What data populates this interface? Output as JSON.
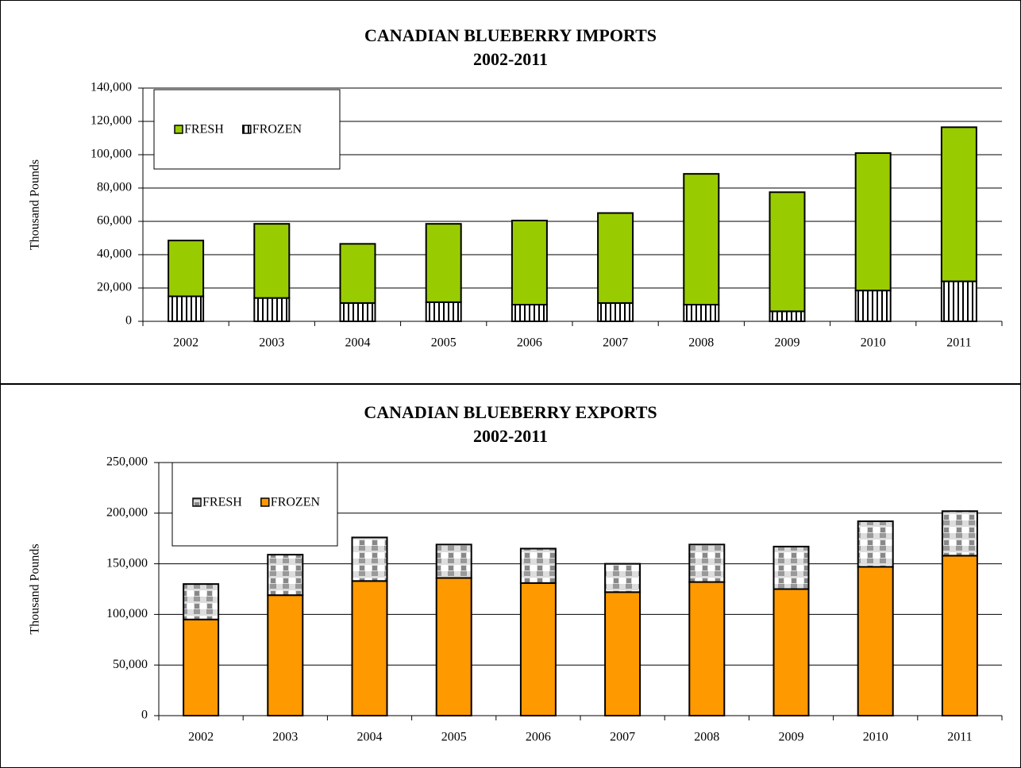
{
  "chart_data": [
    {
      "type": "stacked-bar",
      "title": "CANADIAN BLUEBERRY IMPORTS",
      "subtitle": "2002-2011",
      "y_label": "Thousand Pounds",
      "categories": [
        "2002",
        "2003",
        "2004",
        "2005",
        "2006",
        "2007",
        "2008",
        "2009",
        "2010",
        "2011"
      ],
      "series": [
        {
          "name": "FRESH",
          "color": "#99cc00",
          "pattern": "solid",
          "values": [
            33500,
            44500,
            35500,
            47000,
            50500,
            54000,
            78500,
            71500,
            82500,
            92500
          ]
        },
        {
          "name": "FROZEN",
          "color": "#ffffff",
          "pattern": "vertical-stripes",
          "values": [
            15000,
            14000,
            11000,
            11500,
            10000,
            11000,
            10000,
            6000,
            18500,
            24000
          ]
        }
      ],
      "ylim": [
        0,
        140000
      ],
      "yticks": [
        0,
        {
          "value": 20000,
          "label": "20,000"
        },
        {
          "value": 40000,
          "label": "40,000"
        },
        {
          "value": 60000,
          "label": "60,000"
        },
        {
          "value": 80000,
          "label": "80,000"
        },
        {
          "value": 100000,
          "label": "100,000"
        },
        {
          "value": 120000,
          "label": "120,000"
        },
        {
          "value": 140000,
          "label": "140,000"
        }
      ],
      "grid": true,
      "legend": "top-left"
    },
    {
      "type": "stacked-bar",
      "title": "CANADIAN BLUEBERRY EXPORTS",
      "subtitle": "2002-2011",
      "y_label": "Thousand Pounds",
      "categories": [
        "2002",
        "2003",
        "2004",
        "2005",
        "2006",
        "2007",
        "2008",
        "2009",
        "2010",
        "2011"
      ],
      "series": [
        {
          "name": "FRESH",
          "color": "#ffffff",
          "pattern": "checker",
          "values": [
            35000,
            40000,
            43000,
            33000,
            34000,
            28000,
            37000,
            42000,
            45000,
            44000
          ]
        },
        {
          "name": "FROZEN",
          "color": "#ff9900",
          "pattern": "solid",
          "values": [
            95000,
            119000,
            133000,
            136000,
            131000,
            122000,
            132000,
            125000,
            147000,
            158000
          ]
        }
      ],
      "ylim": [
        0,
        250000
      ],
      "yticks": [
        0,
        {
          "value": 50000,
          "label": "50,000"
        },
        {
          "value": 100000,
          "label": "100,000"
        },
        {
          "value": 150000,
          "label": "150,000"
        },
        {
          "value": 200000,
          "label": "200,000"
        },
        {
          "value": 250000,
          "label": "250,000"
        }
      ],
      "grid": true,
      "legend": "top-left"
    }
  ]
}
